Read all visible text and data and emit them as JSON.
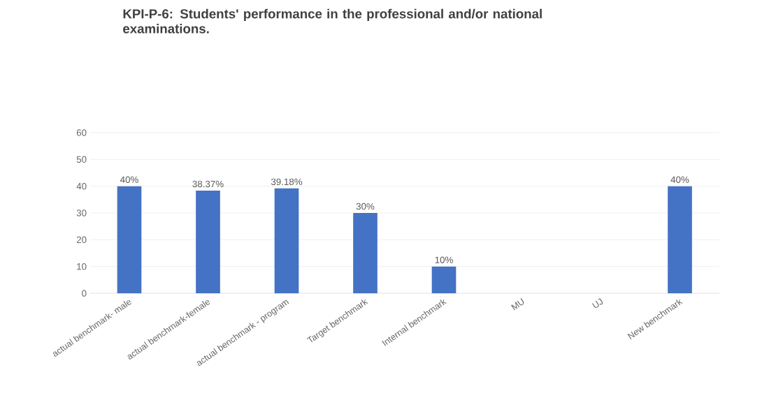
{
  "chart_data": {
    "type": "bar",
    "title": "KPI-P-6: Students' performance in the professional and/or national examinations.",
    "categories": [
      "actual benchmark- male",
      "actual benchmark-female",
      "actual benchmark - program",
      "Target benchmark",
      "Internal benchmark",
      "MU",
      "UJ",
      "New benchmark"
    ],
    "values": [
      40,
      38.37,
      39.18,
      30,
      10,
      null,
      null,
      40
    ],
    "value_labels": [
      "40%",
      "38.37%",
      "39.18%",
      "30%",
      "10%",
      null,
      null,
      "40%"
    ],
    "color": "#4472c4",
    "ylim": [
      0,
      60
    ],
    "yticks": [
      0,
      10,
      20,
      30,
      40,
      50,
      60
    ],
    "grid": "y"
  }
}
